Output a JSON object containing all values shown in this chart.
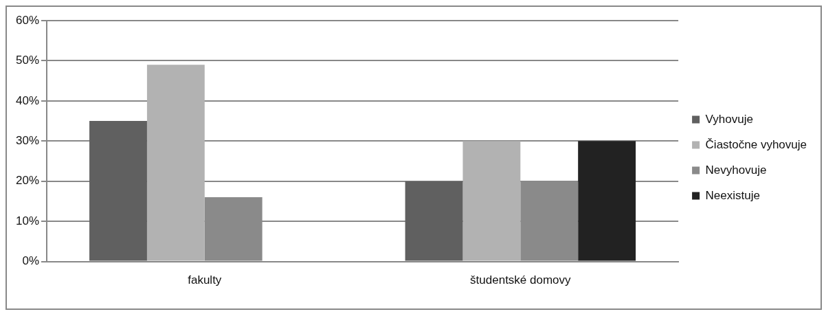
{
  "chart_data": {
    "type": "bar",
    "categories": [
      "fakulty",
      "študentské domovy"
    ],
    "series": [
      {
        "name": "Vyhovuje",
        "color": "#606060",
        "values": [
          35,
          20
        ]
      },
      {
        "name": "Čiastočne vyhovuje",
        "color": "#b2b2b2",
        "values": [
          49,
          30
        ]
      },
      {
        "name": "Nevyhovuje",
        "color": "#8a8a8a",
        "values": [
          16,
          20
        ]
      },
      {
        "name": "Neexistuje",
        "color": "#222222",
        "values": [
          0,
          30
        ]
      }
    ],
    "ylim": [
      0,
      60
    ],
    "yticks": [
      {
        "value": 0,
        "label": "0%"
      },
      {
        "value": 10,
        "label": "10%"
      },
      {
        "value": 20,
        "label": "20%"
      },
      {
        "value": 30,
        "label": "30%"
      },
      {
        "value": 40,
        "label": "40%"
      },
      {
        "value": 50,
        "label": "50%"
      },
      {
        "value": 60,
        "label": "60%"
      }
    ],
    "grid": "y",
    "legend": "right"
  }
}
